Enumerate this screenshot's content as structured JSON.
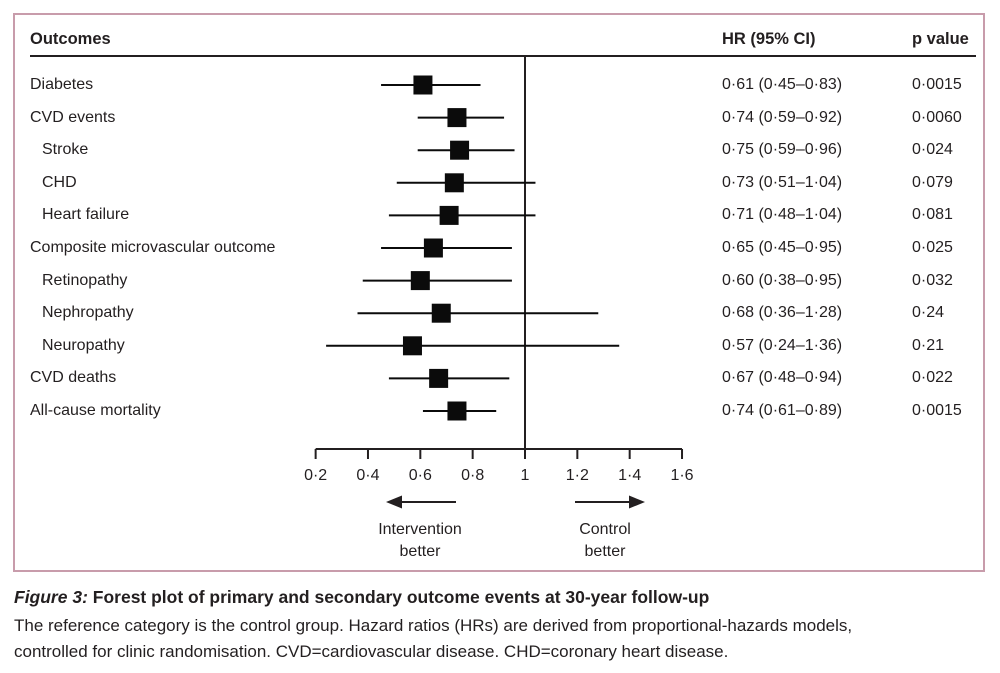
{
  "panel": {
    "header": {
      "outcomes": "Outcomes",
      "hr": "HR (95% CI)",
      "pvalue": "p value"
    }
  },
  "chart_data": {
    "type": "forest",
    "title": "Forest plot of primary and secondary outcome events at 30-year follow-up",
    "x_axis": {
      "ticks": [
        0.2,
        0.4,
        0.6,
        0.8,
        1,
        1.2,
        1.4,
        1.6
      ],
      "tick_labels": [
        "0·2",
        "0·4",
        "0·6",
        "0·8",
        "1",
        "1·2",
        "1·4",
        "1·6"
      ],
      "range": [
        0.2,
        1.6
      ],
      "reference_line": 1
    },
    "columns": [
      "Outcomes",
      "HR (95% CI)",
      "p value"
    ],
    "rows": [
      {
        "label": "Diabetes",
        "indent": false,
        "hr": 0.61,
        "low": 0.45,
        "high": 0.83,
        "hr_text": "0·61 (0·45–0·83)",
        "p_text": "0·0015"
      },
      {
        "label": "CVD events",
        "indent": false,
        "hr": 0.74,
        "low": 0.59,
        "high": 0.92,
        "hr_text": "0·74 (0·59–0·92)",
        "p_text": "0·0060"
      },
      {
        "label": "Stroke",
        "indent": true,
        "hr": 0.75,
        "low": 0.59,
        "high": 0.96,
        "hr_text": "0·75 (0·59–0·96)",
        "p_text": "0·024"
      },
      {
        "label": "CHD",
        "indent": true,
        "hr": 0.73,
        "low": 0.51,
        "high": 1.04,
        "hr_text": "0·73 (0·51–1·04)",
        "p_text": "0·079"
      },
      {
        "label": "Heart failure",
        "indent": true,
        "hr": 0.71,
        "low": 0.48,
        "high": 1.04,
        "hr_text": "0·71 (0·48–1·04)",
        "p_text": "0·081"
      },
      {
        "label": "Composite microvascular outcome",
        "indent": false,
        "hr": 0.65,
        "low": 0.45,
        "high": 0.95,
        "hr_text": "0·65 (0·45–0·95)",
        "p_text": "0·025"
      },
      {
        "label": "Retinopathy",
        "indent": true,
        "hr": 0.6,
        "low": 0.38,
        "high": 0.95,
        "hr_text": "0·60 (0·38–0·95)",
        "p_text": "0·032"
      },
      {
        "label": "Nephropathy",
        "indent": true,
        "hr": 0.68,
        "low": 0.36,
        "high": 1.28,
        "hr_text": "0·68 (0·36–1·28)",
        "p_text": "0·24"
      },
      {
        "label": "Neuropathy",
        "indent": true,
        "hr": 0.57,
        "low": 0.24,
        "high": 1.36,
        "hr_text": "0·57 (0·24–1·36)",
        "p_text": "0·21"
      },
      {
        "label": "CVD deaths",
        "indent": false,
        "hr": 0.67,
        "low": 0.48,
        "high": 0.94,
        "hr_text": "0·67 (0·48–0·94)",
        "p_text": "0·022"
      },
      {
        "label": "All-cause mortality",
        "indent": false,
        "hr": 0.74,
        "low": 0.61,
        "high": 0.89,
        "hr_text": "0·74 (0·61–0·89)",
        "p_text": "0·0015"
      }
    ],
    "direction_labels": {
      "left": {
        "line1": "Intervention",
        "line2": "better"
      },
      "right": {
        "line1": "Control",
        "line2": "better"
      }
    }
  },
  "caption": {
    "figure_label": "Figure 3:",
    "title": " Forest plot of primary and secondary outcome events at 30-year follow-up",
    "footnote": "The reference category is the control group. Hazard ratios (HRs) are derived from proportional-hazards models,\ncontrolled for clinic randomisation. CVD=cardiovascular disease. CHD=coronary heart disease."
  },
  "colors": {
    "border": "#c89cab",
    "text": "#231f20",
    "marker": "#0b0b0b"
  }
}
